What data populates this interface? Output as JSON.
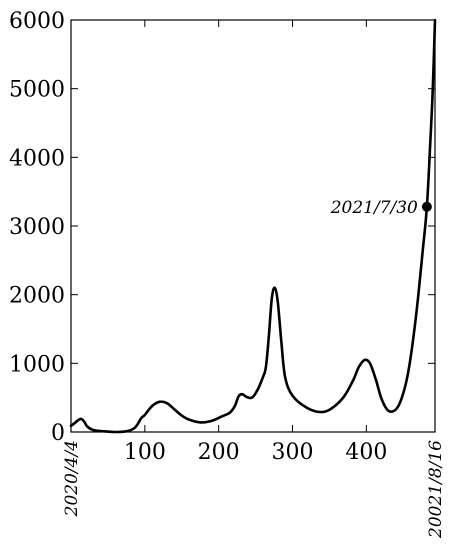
{
  "chart_data": {
    "type": "line",
    "title": "",
    "xlabel": "",
    "ylabel": "",
    "xlim": [
      0,
      493
    ],
    "ylim": [
      0,
      6000
    ],
    "grid": false,
    "x_ticks": [
      100,
      200,
      300,
      400
    ],
    "x_tick_labels": [
      "100",
      "200",
      "300",
      "400"
    ],
    "y_ticks": [
      0,
      1000,
      2000,
      3000,
      4000,
      5000,
      6000
    ],
    "y_tick_labels": [
      "0",
      "1000",
      "2000",
      "3000",
      "4000",
      "5000",
      "6000"
    ],
    "x_start_label": "2020/4/4",
    "x_end_label": "20021/8/16",
    "annotation": {
      "label": "2021/7/30",
      "x": 482,
      "y": 3280
    },
    "series": [
      {
        "x": [
          0,
          5,
          10,
          14,
          18,
          22,
          30,
          45,
          60,
          75,
          85,
          90,
          95,
          100,
          110,
          120,
          130,
          140,
          150,
          160,
          175,
          190,
          205,
          215,
          222,
          227,
          232,
          238,
          245,
          252,
          260,
          264,
          268,
          272,
          276,
          280,
          285,
          290,
          300,
          320,
          340,
          355,
          370,
          382,
          390,
          398,
          405,
          413,
          420,
          428,
          436,
          444,
          452,
          458,
          464,
          470,
          476,
          482,
          487,
          490,
          493
        ],
        "y": [
          90,
          130,
          175,
          190,
          150,
          80,
          30,
          10,
          0,
          10,
          50,
          110,
          200,
          250,
          380,
          440,
          420,
          330,
          240,
          180,
          140,
          160,
          230,
          280,
          380,
          520,
          550,
          510,
          500,
          600,
          800,
          950,
          1400,
          1950,
          2100,
          1900,
          1300,
          800,
          530,
          350,
          290,
          360,
          520,
          750,
          950,
          1050,
          1000,
          760,
          500,
          330,
          300,
          390,
          640,
          950,
          1400,
          1950,
          2600,
          3280,
          4300,
          5000,
          6000
        ]
      }
    ]
  }
}
